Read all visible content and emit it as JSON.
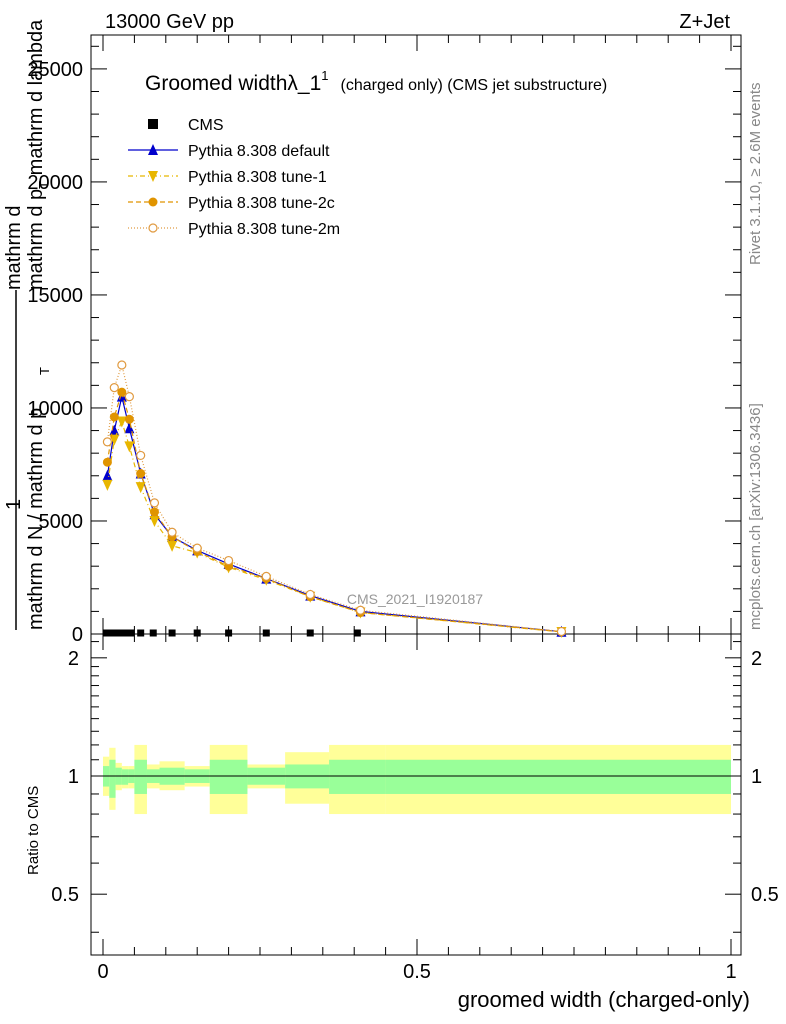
{
  "header": {
    "left": "13000 GeV pp",
    "right": "Z+Jet"
  },
  "side_labels": {
    "rivet": "Rivet 3.1.10, ≥ 2.6M events",
    "mcplots": "mcplots.cern.ch [arXiv:1306.3436]"
  },
  "chart_data": {
    "type": "line",
    "title_main": "Groomed widthλ_1",
    "title_sup": "1",
    "title_sub": "(charged only) (CMS jet substructure)",
    "watermark": "CMS_2021_I1920187",
    "ylabel_top": {
      "numerator": "mathrm d",
      "numerator_sup": "2",
      "numerator_tail": "N",
      "denominator": "mathrm d p",
      "denominator_sub": "T",
      "denominator_tail": " mathrm d lambda",
      "prefix_num": "1",
      "prefix_den": "mathrm d N / mathrm d p",
      "prefix_den_sub": "T"
    },
    "xlabel": "groomed width (charged-only)",
    "ratio_ylabel": "Ratio to CMS",
    "xlim": [
      0,
      1
    ],
    "ylim_main": [
      0,
      26500
    ],
    "ylim_ratio": [
      0.35,
      2.3
    ],
    "x_ticks": [
      "0",
      "0.5",
      "1"
    ],
    "y_ticks_main": [
      "0",
      "5000",
      "10000",
      "15000",
      "20000",
      "25000"
    ],
    "y_ticks_ratio": [
      "0.5",
      "1",
      "2"
    ],
    "legend": [
      {
        "label": "CMS",
        "color": "#000000",
        "marker": "square",
        "dash": ""
      },
      {
        "label": "Pythia 8.308 default",
        "color": "#0000cc",
        "marker": "triangle-up",
        "dash": ""
      },
      {
        "label": "Pythia 8.308 tune-1",
        "color": "#e8b600",
        "marker": "triangle-down",
        "dash": "5,3,1,3"
      },
      {
        "label": "Pythia 8.308 tune-2c",
        "color": "#e09400",
        "marker": "circle",
        "dash": "5,3"
      },
      {
        "label": "Pythia 8.308 tune-2m",
        "color": "#e09a40",
        "marker": "circle-open",
        "dash": "1,2"
      }
    ],
    "cms": {
      "x": [
        0.005,
        0.015,
        0.025,
        0.035,
        0.045,
        0.06,
        0.08,
        0.11,
        0.15,
        0.2,
        0.26,
        0.33,
        0.405
      ],
      "y": [
        0,
        0,
        0,
        0,
        0,
        0,
        0,
        0,
        0,
        0,
        0,
        0,
        0
      ]
    },
    "series": [
      {
        "name": "Pythia 8.308 default",
        "x": [
          0.007,
          0.018,
          0.03,
          0.042,
          0.06,
          0.082,
          0.11,
          0.15,
          0.2,
          0.26,
          0.33,
          0.41,
          0.73
        ],
        "y": [
          7000,
          9000,
          10500,
          9100,
          7100,
          5300,
          4300,
          3700,
          3100,
          2450,
          1700,
          1000,
          100
        ]
      },
      {
        "name": "Pythia 8.308 tune-1",
        "x": [
          0.007,
          0.018,
          0.03,
          0.042,
          0.06,
          0.082,
          0.11,
          0.15,
          0.2,
          0.26,
          0.33,
          0.41,
          0.73
        ],
        "y": [
          6600,
          8600,
          9400,
          8300,
          6500,
          5000,
          3900,
          3600,
          2950,
          2400,
          1650,
          950,
          90
        ]
      },
      {
        "name": "Pythia 8.308 tune-2c",
        "x": [
          0.007,
          0.018,
          0.03,
          0.042,
          0.06,
          0.082,
          0.11,
          0.15,
          0.2,
          0.26,
          0.33,
          0.41,
          0.73
        ],
        "y": [
          7600,
          9600,
          10700,
          9500,
          7100,
          5400,
          4300,
          3650,
          3000,
          2450,
          1650,
          950,
          100
        ]
      },
      {
        "name": "Pythia 8.308 tune-2m",
        "x": [
          0.007,
          0.018,
          0.03,
          0.042,
          0.06,
          0.082,
          0.11,
          0.15,
          0.2,
          0.26,
          0.33,
          0.41,
          0.73
        ],
        "y": [
          8500,
          10900,
          11900,
          10500,
          7900,
          5800,
          4500,
          3800,
          3250,
          2550,
          1750,
          1050,
          110
        ]
      }
    ],
    "ratio_bands": {
      "edges": [
        0,
        0.01,
        0.02,
        0.03,
        0.04,
        0.05,
        0.07,
        0.09,
        0.13,
        0.17,
        0.23,
        0.29,
        0.36,
        0.45,
        1.0
      ],
      "green": [
        [
          0.94,
          1.06
        ],
        [
          0.88,
          1.1
        ],
        [
          0.95,
          1.05
        ],
        [
          0.95,
          1.04
        ],
        [
          0.96,
          1.04
        ],
        [
          0.9,
          1.1
        ],
        [
          0.96,
          1.04
        ],
        [
          0.95,
          1.05
        ],
        [
          0.96,
          1.04
        ],
        [
          0.9,
          1.1
        ],
        [
          0.95,
          1.05
        ],
        [
          0.93,
          1.07
        ],
        [
          0.9,
          1.1
        ],
        [
          0.9,
          1.1
        ]
      ],
      "yellow": [
        [
          0.89,
          1.12
        ],
        [
          0.82,
          1.18
        ],
        [
          0.92,
          1.08
        ],
        [
          0.93,
          1.06
        ],
        [
          0.93,
          1.06
        ],
        [
          0.8,
          1.2
        ],
        [
          0.93,
          1.07
        ],
        [
          0.92,
          1.09
        ],
        [
          0.94,
          1.06
        ],
        [
          0.8,
          1.2
        ],
        [
          0.93,
          1.07
        ],
        [
          0.85,
          1.15
        ],
        [
          0.8,
          1.2
        ],
        [
          0.8,
          1.2
        ]
      ]
    },
    "colors": {
      "green": "#99ff99",
      "yellow": "#ffff99",
      "axis": "#000000"
    },
    "grid": false,
    "legend_placement": "top-left"
  }
}
